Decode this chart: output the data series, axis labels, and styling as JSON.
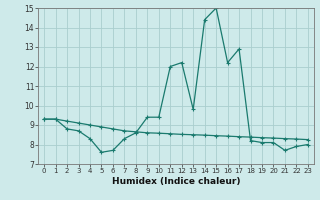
{
  "title": "",
  "xlabel": "Humidex (Indice chaleur)",
  "bg_color": "#ceeaea",
  "grid_color": "#aacece",
  "line_color": "#1a7a6e",
  "xlim": [
    -0.5,
    23.5
  ],
  "ylim": [
    7,
    15
  ],
  "yticks": [
    7,
    8,
    9,
    10,
    11,
    12,
    13,
    14,
    15
  ],
  "xticks": [
    0,
    1,
    2,
    3,
    4,
    5,
    6,
    7,
    8,
    9,
    10,
    11,
    12,
    13,
    14,
    15,
    16,
    17,
    18,
    19,
    20,
    21,
    22,
    23
  ],
  "series1_x": [
    0,
    1,
    2,
    3,
    4,
    5,
    6,
    7,
    8,
    9,
    10,
    11,
    12,
    13,
    14,
    15,
    16,
    17,
    18,
    19,
    20,
    21,
    22,
    23
  ],
  "series1_y": [
    9.3,
    9.3,
    8.8,
    8.7,
    8.3,
    7.6,
    7.7,
    8.3,
    8.6,
    9.4,
    9.4,
    12.0,
    12.2,
    9.8,
    14.4,
    15.0,
    12.2,
    12.9,
    8.2,
    8.1,
    8.1,
    7.7,
    7.9,
    8.0
  ],
  "series2_x": [
    0,
    1,
    2,
    3,
    4,
    5,
    6,
    7,
    8,
    9,
    10,
    11,
    12,
    13,
    14,
    15,
    16,
    17,
    18,
    19,
    20,
    21,
    22,
    23
  ],
  "series2_y": [
    9.3,
    9.3,
    9.2,
    9.1,
    9.0,
    8.9,
    8.8,
    8.7,
    8.65,
    8.6,
    8.58,
    8.55,
    8.52,
    8.5,
    8.48,
    8.45,
    8.43,
    8.4,
    8.38,
    8.35,
    8.33,
    8.3,
    8.28,
    8.25
  ]
}
